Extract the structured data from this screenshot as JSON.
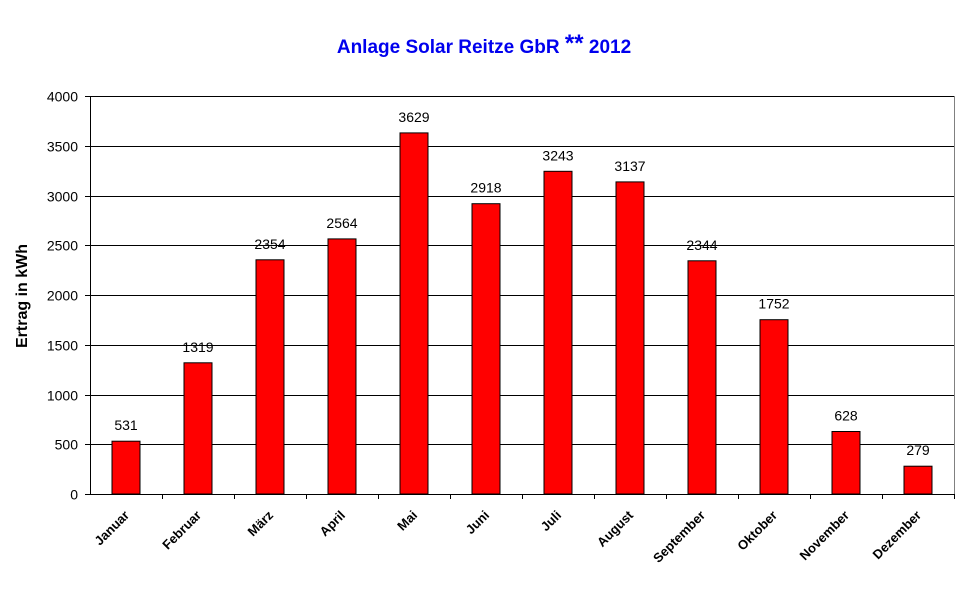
{
  "chart_data": {
    "type": "bar",
    "title_text": "Anlage Solar Reitze GbR",
    "title_stars": "**",
    "title_year": "2012",
    "ylabel": "Ertrag in kWh",
    "xlabel": "",
    "ylim": [
      0,
      4000
    ],
    "yticks": [
      0,
      500,
      1000,
      1500,
      2000,
      2500,
      3000,
      3500,
      4000
    ],
    "grid": true,
    "legend": "none",
    "bar_color": "#ff0000",
    "title_color": "#0000ee",
    "categories": [
      "Januar",
      "Februar",
      "März",
      "April",
      "Mai",
      "Juni",
      "Juli",
      "August",
      "September",
      "Oktober",
      "November",
      "Dezember"
    ],
    "values": [
      531,
      1319,
      2354,
      2564,
      3629,
      2918,
      3243,
      3137,
      2344,
      1752,
      628,
      279
    ]
  }
}
